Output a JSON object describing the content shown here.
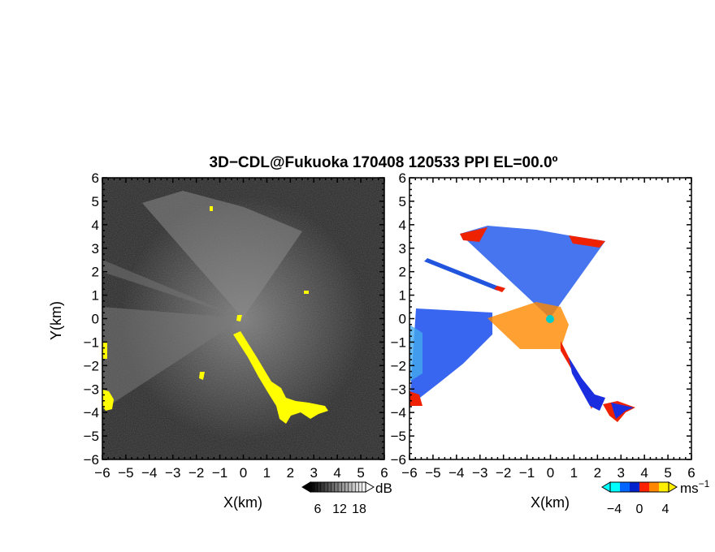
{
  "title": "3D−CDL@Fukuoka 170408 120533 PPI EL=00.0º",
  "chart_data": [
    {
      "type": "heatmap",
      "panel": "reflectivity",
      "xlabel": "X(km)",
      "ylabel": "Y(km)",
      "xlim": [
        -6,
        6
      ],
      "ylim": [
        -6,
        6
      ],
      "xticks": [
        "−6",
        "−5",
        "−4",
        "−3",
        "−2",
        "−1",
        "0",
        "1",
        "2",
        "3",
        "4",
        "5",
        "6"
      ],
      "yticks": [
        "6",
        "5",
        "4",
        "3",
        "2",
        "1",
        "0",
        "−1",
        "−2",
        "−3",
        "−4",
        "−5",
        "−6"
      ],
      "colorbar": {
        "unit": "dB",
        "ticks": [
          "6",
          "12",
          "18"
        ],
        "colors": [
          "#000000",
          "#ffffff"
        ]
      },
      "highlight_color": "#ffff00"
    },
    {
      "type": "heatmap",
      "panel": "doppler-velocity",
      "xlabel": "X(km)",
      "ylabel": "",
      "xlim": [
        -6,
        6
      ],
      "ylim": [
        -6,
        6
      ],
      "xticks": [
        "−6",
        "−5",
        "−4",
        "−3",
        "−2",
        "−1",
        "0",
        "1",
        "2",
        "3",
        "4",
        "5",
        "6"
      ],
      "yticks": [
        "6",
        "5",
        "4",
        "3",
        "2",
        "1",
        "0",
        "−1",
        "−2",
        "−3",
        "−4",
        "−5",
        "−6"
      ],
      "colorbar": {
        "unit": "ms",
        "unit_exponent": "−1",
        "ticks": [
          "−4",
          "0",
          "4"
        ],
        "colors": [
          "#00ffff",
          "#0066ff",
          "#0022cc",
          "#ff2200",
          "#ff8800",
          "#ffee00"
        ]
      }
    }
  ]
}
